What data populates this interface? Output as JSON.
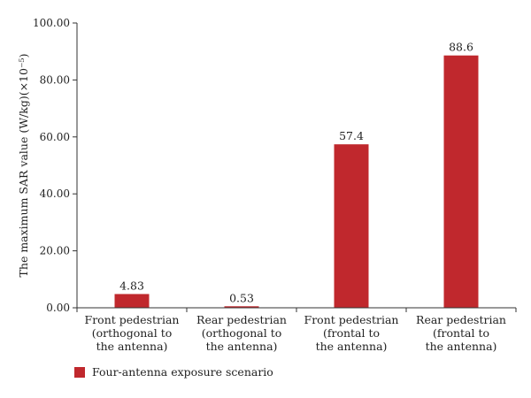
{
  "chart_data": {
    "type": "bar",
    "categories": [
      [
        "Front pedestrian",
        "(orthogonal to",
        "the antenna)"
      ],
      [
        "Rear pedestrian",
        "(orthogonal to",
        "the antenna)"
      ],
      [
        "Front pedestrian",
        "(frontal to",
        "the antenna)"
      ],
      [
        "Rear pedestrian",
        "(frontal to",
        "the antenna)"
      ]
    ],
    "series": [
      {
        "name": "Four-antenna exposure scenario",
        "values": [
          4.83,
          0.53,
          57.4,
          88.6
        ],
        "value_labels": [
          "4.83",
          "0.53",
          "57.4",
          "88.6"
        ],
        "color": "#c0282d"
      }
    ],
    "ylabel": "The maximum SAR value (W/kg)(×10⁻⁵)",
    "xlabel": "",
    "ylim": [
      0,
      100
    ],
    "yticks": [
      0,
      20,
      40,
      60,
      80,
      100
    ],
    "ytick_labels": [
      "0.00",
      "20.00",
      "40.00",
      "60.00",
      "80.00",
      "100.00"
    ],
    "grid": false,
    "legend_position": "bottom-left"
  }
}
